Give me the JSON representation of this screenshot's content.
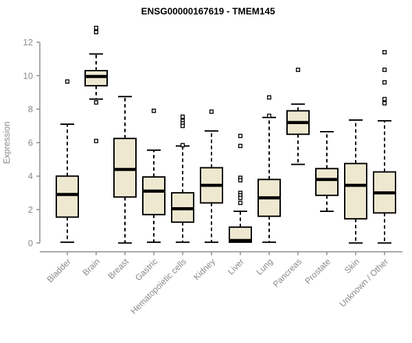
{
  "title": "ENSG00000167619 - TMEM145",
  "colors": {
    "background": "#ffffff",
    "box_fill": "#EEE8D0",
    "box_stroke": "#000000",
    "median": "#000000",
    "whisker": "#000000",
    "outlier_stroke": "#000000",
    "axis": "#8a8a8a",
    "labels": "#8a8a8a",
    "title": "#000000"
  },
  "chart_data": {
    "type": "boxplot",
    "title": "ENSG00000167619 - TMEM145",
    "xlabel": "",
    "ylabel": "Expression",
    "ylim": [
      0,
      12.9
    ],
    "yticks": [
      0,
      2,
      4,
      6,
      8,
      10,
      12
    ],
    "grid": false,
    "legend": "none",
    "categories": [
      "Bladder",
      "Brain",
      "Breast",
      "Gastric",
      "Hematopoietic cells",
      "Kidney",
      "Liver",
      "Lung",
      "Pancreas",
      "Prostate",
      "Skin",
      "Unknown / Other"
    ],
    "series": [
      {
        "category": "Bladder",
        "whisker_low": 0.05,
        "q1": 1.55,
        "median": 2.9,
        "q3": 4.0,
        "whisker_high": 7.1,
        "outliers": [
          9.65
        ]
      },
      {
        "category": "Brain",
        "whisker_low": 8.6,
        "q1": 9.4,
        "median": 9.95,
        "q3": 10.3,
        "whisker_high": 11.3,
        "outliers": [
          12.85,
          12.6,
          8.4,
          6.1
        ]
      },
      {
        "category": "Breast",
        "whisker_low": 0.0,
        "q1": 2.75,
        "median": 4.4,
        "q3": 6.25,
        "whisker_high": 8.75,
        "outliers": []
      },
      {
        "category": "Gastric",
        "whisker_low": 0.05,
        "q1": 1.7,
        "median": 3.1,
        "q3": 3.95,
        "whisker_high": 5.55,
        "outliers": [
          7.9
        ]
      },
      {
        "category": "Hematopoietic cells",
        "whisker_low": 0.05,
        "q1": 1.25,
        "median": 2.05,
        "q3": 3.0,
        "whisker_high": 5.8,
        "outliers": [
          7.55,
          7.3,
          7.15,
          7.0,
          5.85
        ]
      },
      {
        "category": "Kidney",
        "whisker_low": 0.05,
        "q1": 2.4,
        "median": 3.45,
        "q3": 4.5,
        "whisker_high": 6.7,
        "outliers": [
          7.85
        ]
      },
      {
        "category": "Liver",
        "whisker_low": 0.05,
        "q1": 0.05,
        "median": 0.15,
        "q3": 0.95,
        "whisker_high": 1.9,
        "outliers": [
          6.4,
          5.8,
          3.9,
          3.75,
          3.0,
          2.85,
          2.7,
          2.4
        ]
      },
      {
        "category": "Lung",
        "whisker_low": 0.05,
        "q1": 1.6,
        "median": 2.7,
        "q3": 3.8,
        "whisker_high": 7.5,
        "outliers": [
          8.7,
          7.6
        ]
      },
      {
        "category": "Pancreas",
        "whisker_low": 4.7,
        "q1": 6.5,
        "median": 7.2,
        "q3": 7.9,
        "whisker_high": 8.3,
        "outliers": [
          10.35
        ]
      },
      {
        "category": "Prostate",
        "whisker_low": 1.9,
        "q1": 2.85,
        "median": 3.8,
        "q3": 4.45,
        "whisker_high": 6.65,
        "outliers": []
      },
      {
        "category": "Skin",
        "whisker_low": 0.0,
        "q1": 1.45,
        "median": 3.45,
        "q3": 4.75,
        "whisker_high": 7.35,
        "outliers": []
      },
      {
        "category": "Unknown / Other",
        "whisker_low": 0.0,
        "q1": 1.8,
        "median": 3.0,
        "q3": 4.25,
        "whisker_high": 7.3,
        "outliers": [
          11.4,
          10.35,
          9.6,
          8.6,
          8.35
        ]
      }
    ]
  }
}
